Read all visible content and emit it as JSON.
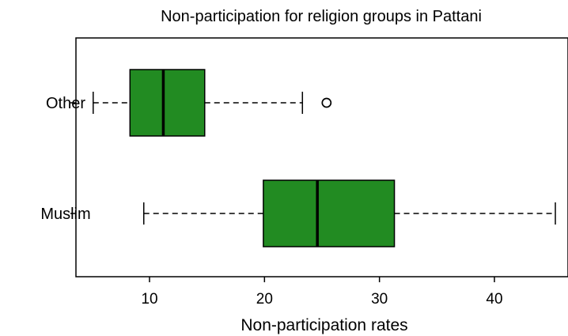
{
  "chart_data": {
    "type": "boxplot",
    "orientation": "horizontal",
    "title": "Non-participation for religion groups in Pattani",
    "xlabel": "Non-participation rates",
    "ylabel": "",
    "xlim": [
      3.6,
      46.4
    ],
    "xticks": [
      10,
      20,
      30,
      40
    ],
    "grid": false,
    "box_color": "#228B22",
    "groups": [
      {
        "name": "Other",
        "whisker_low": 5.1,
        "q1": 8.3,
        "median": 11.2,
        "q3": 14.8,
        "whisker_high": 23.3,
        "outliers": [
          25.4
        ]
      },
      {
        "name": "Muslim",
        "whisker_low": 9.5,
        "q1": 19.9,
        "median": 24.6,
        "q3": 31.3,
        "whisker_high": 45.3,
        "outliers": []
      }
    ]
  }
}
